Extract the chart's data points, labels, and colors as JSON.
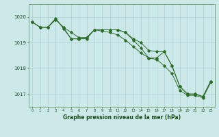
{
  "title": "Graphe pression niveau de la mer (hPa)",
  "bg_color": "#cce8e8",
  "grid_color": "#aad0d0",
  "line_color": "#2d6b2d",
  "x_ticks": [
    0,
    1,
    2,
    3,
    4,
    5,
    6,
    7,
    8,
    9,
    10,
    11,
    12,
    13,
    14,
    15,
    16,
    17,
    18,
    19,
    20,
    21,
    22,
    23
  ],
  "ylim": [
    1016.5,
    1020.5
  ],
  "yticks": [
    1017,
    1018,
    1019,
    1020
  ],
  "line1": [
    1019.8,
    1019.6,
    1019.6,
    1019.9,
    1019.6,
    1019.4,
    1019.2,
    1019.2,
    1019.5,
    1019.5,
    1019.5,
    1019.5,
    1019.4,
    1019.15,
    1019.0,
    1018.7,
    1018.65,
    1018.65,
    1018.1,
    1017.3,
    1017.0,
    1017.0,
    1016.9,
    1017.5
  ],
  "line2": [
    1019.8,
    1019.6,
    1019.6,
    1019.9,
    1019.6,
    1019.15,
    1019.15,
    1019.2,
    1019.5,
    1019.5,
    1019.5,
    1019.5,
    1019.4,
    1019.1,
    1018.8,
    1018.4,
    1018.4,
    1018.65,
    1018.1,
    1017.3,
    1017.0,
    1017.0,
    1016.9,
    1017.5
  ],
  "line3": [
    1019.8,
    1019.6,
    1019.6,
    1019.95,
    1019.55,
    1019.15,
    1019.15,
    1019.15,
    1019.5,
    1019.45,
    1019.4,
    1019.3,
    1019.1,
    1018.85,
    1018.6,
    1018.4,
    1018.35,
    1018.1,
    1017.8,
    1017.15,
    1016.95,
    1016.95,
    1016.85,
    1017.45
  ],
  "ylabel_fontsize": 5.0,
  "xlabel_fontsize": 4.5,
  "title_fontsize": 5.5
}
